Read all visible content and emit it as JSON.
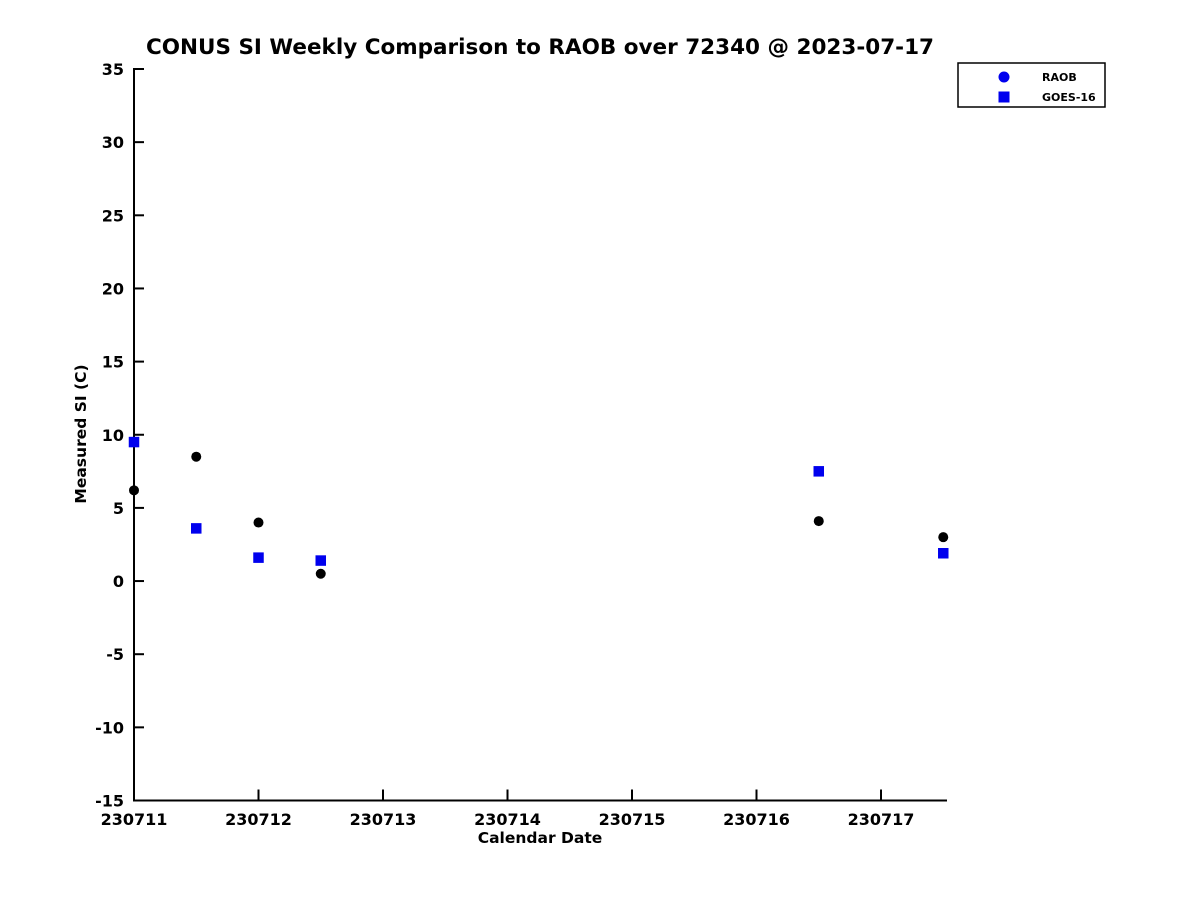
{
  "figure": {
    "title": "CONUS SI Weekly Comparison to RAOB over 72340 @ 2023-07-17"
  },
  "chart_data": {
    "type": "scatter",
    "title": "CONUS SI Weekly Comparison to RAOB over 72340 @ 2023-07-17",
    "xlabel": "Calendar Date",
    "ylabel": "Measured SI (C)",
    "xlim": [
      230711,
      230717.53
    ],
    "ylim": [
      -15,
      35
    ],
    "xticks": [
      230711,
      230712,
      230713,
      230714,
      230715,
      230716,
      230717
    ],
    "yticks": [
      -15,
      -10,
      -5,
      0,
      5,
      10,
      15,
      20,
      25,
      30,
      35
    ],
    "grid": false,
    "legend_position": "top-right",
    "series": [
      {
        "name": "RAOB",
        "marker": "circle",
        "plot_color": "#000000",
        "legend_color": "#0000ee",
        "points": [
          [
            230711.0,
            6.2
          ],
          [
            230711.5,
            8.5
          ],
          [
            230712.0,
            4.0
          ],
          [
            230712.5,
            0.5
          ],
          [
            230716.5,
            4.1
          ],
          [
            230717.5,
            3.0
          ]
        ]
      },
      {
        "name": "GOES-16",
        "marker": "square",
        "plot_color": "#0000ee",
        "legend_color": "#0000ee",
        "points": [
          [
            230711.0,
            9.5
          ],
          [
            230711.5,
            3.6
          ],
          [
            230712.0,
            1.6
          ],
          [
            230712.5,
            1.4
          ],
          [
            230716.5,
            7.5
          ],
          [
            230717.5,
            1.9
          ]
        ]
      }
    ]
  },
  "colors": {
    "axis": "#000000",
    "text": "#000000",
    "marker_blue": "#0000ee",
    "marker_black": "#000000",
    "background": "#ffffff"
  }
}
